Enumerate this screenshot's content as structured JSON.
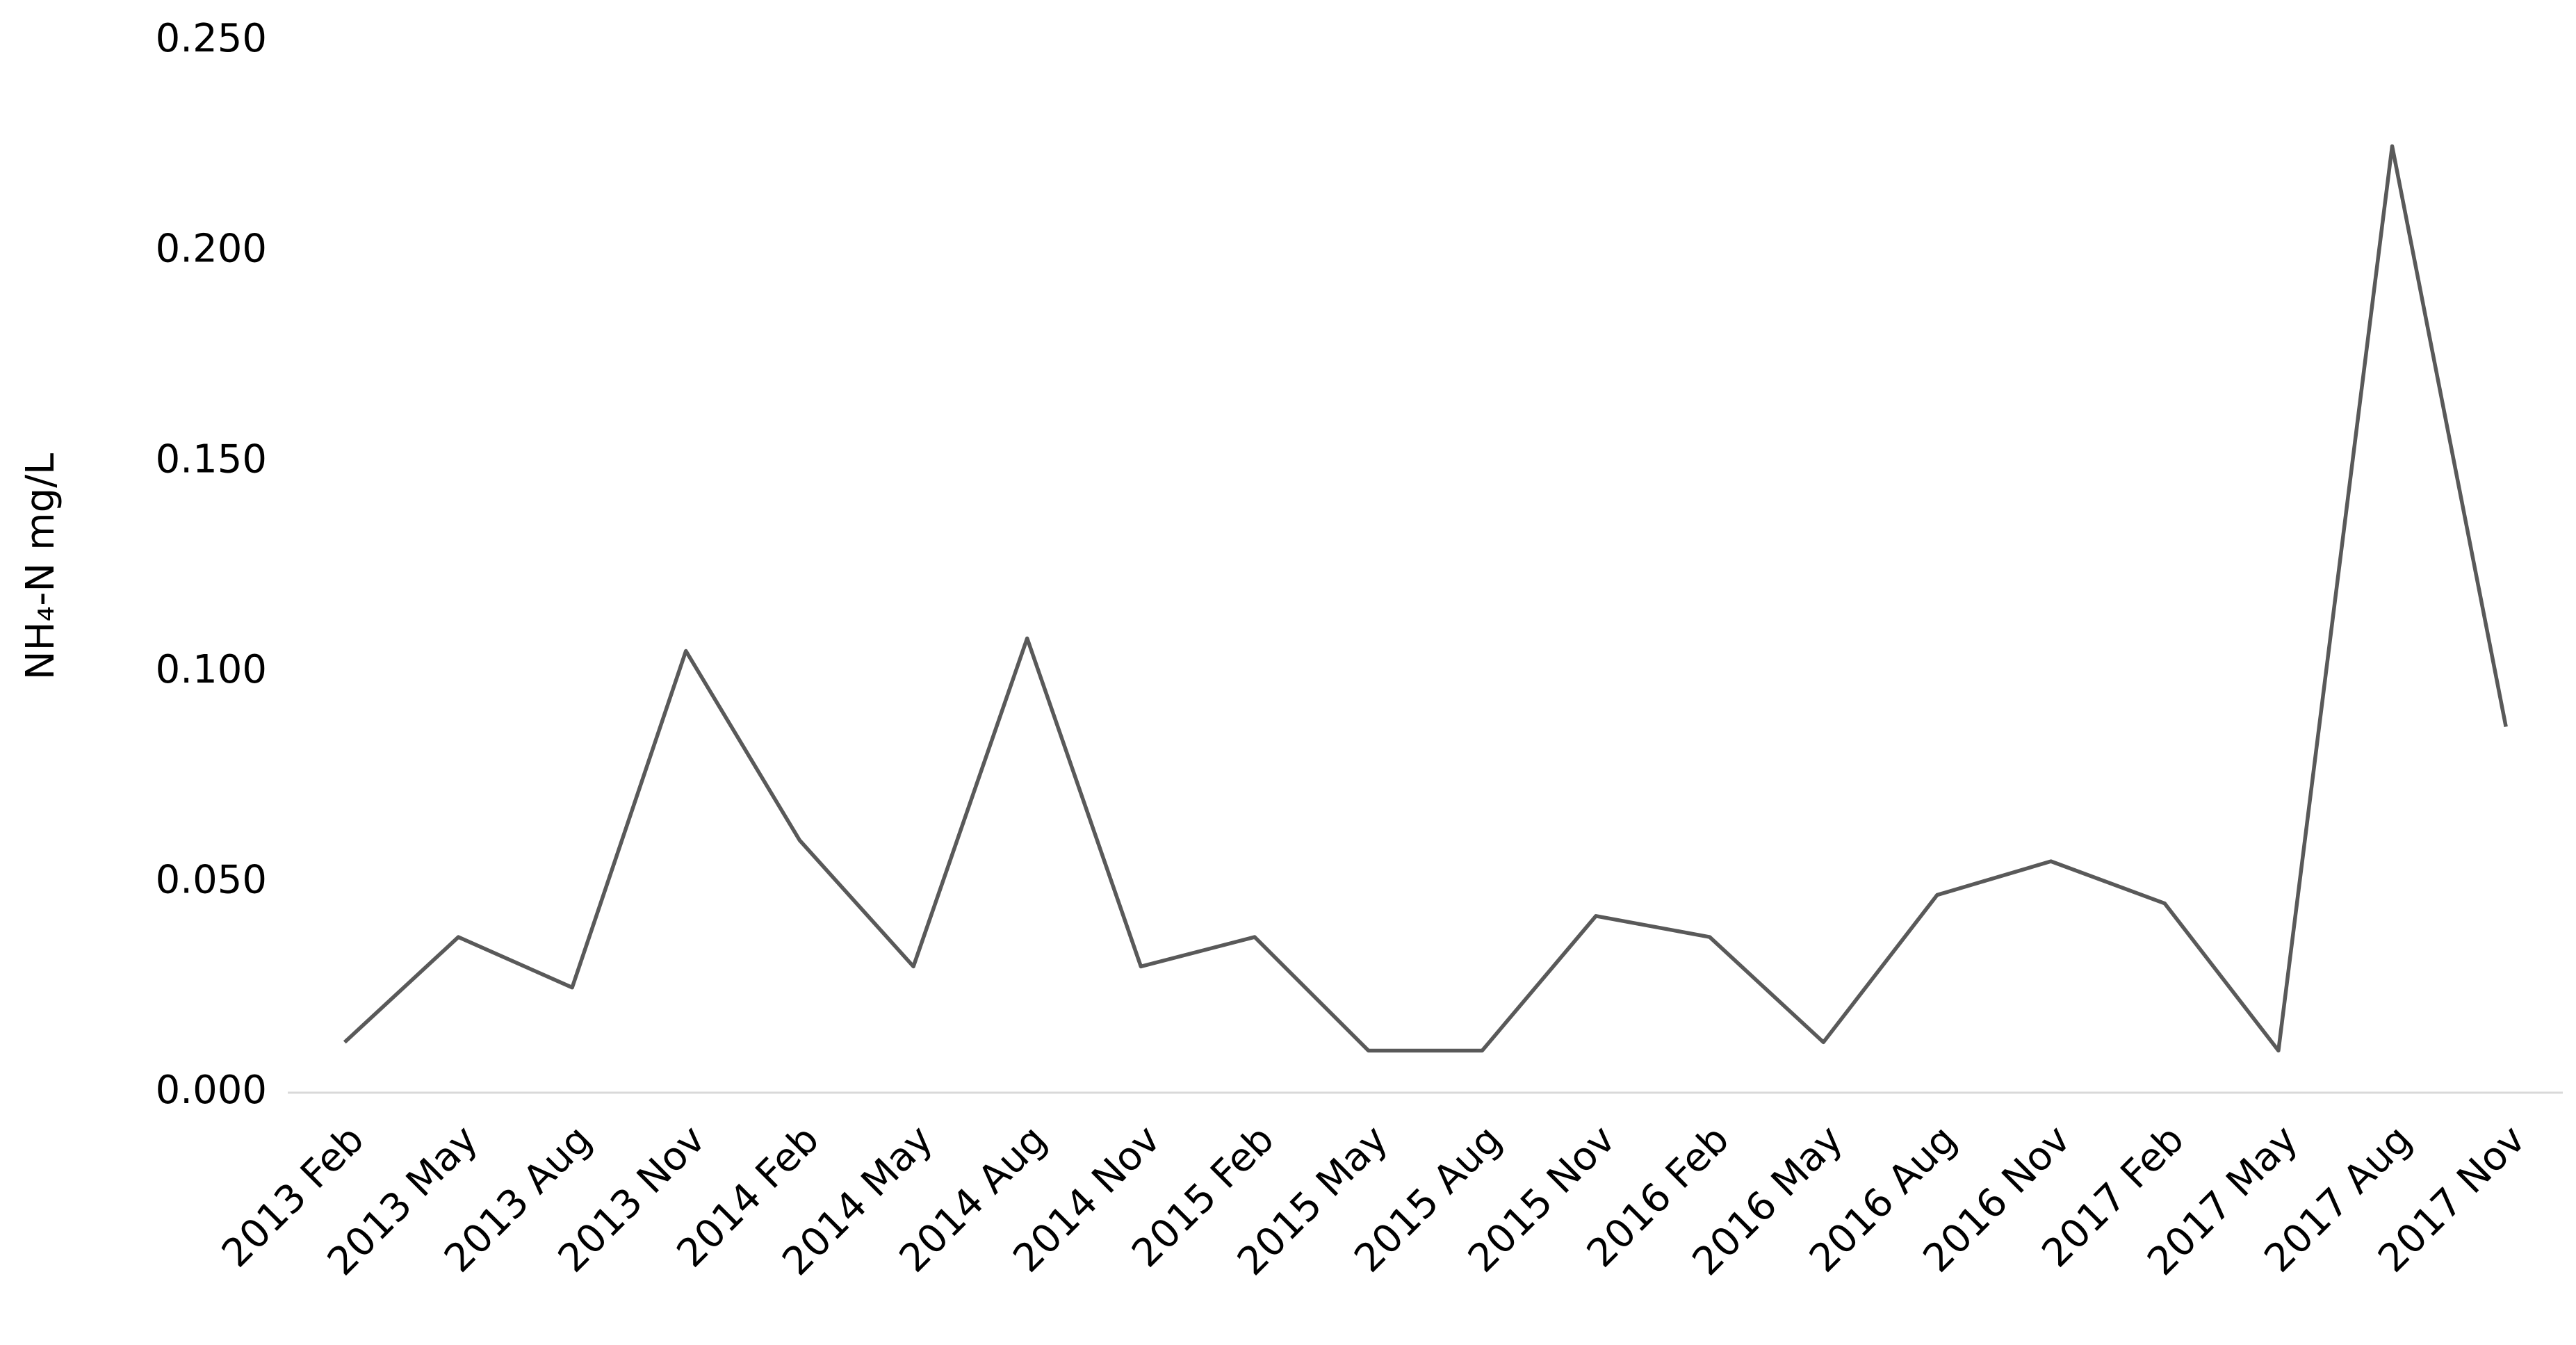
{
  "chart_data": {
    "type": "line",
    "ylabel": "NH₄-N mg/L",
    "categories": [
      "2013 Feb",
      "2013 May",
      "2013 Aug",
      "2013 Nov",
      "2014 Feb",
      "2014 May",
      "2014 Aug",
      "2014 Nov",
      "2015 Feb",
      "2015 May",
      "2015 Aug",
      "2015 Nov",
      "2016 Feb",
      "2016 May",
      "2016 Aug",
      "2016 Nov",
      "2017 Feb",
      "2017 May",
      "2017 Aug",
      "2017 Nov"
    ],
    "values": [
      0.012,
      0.037,
      0.025,
      0.105,
      0.06,
      0.03,
      0.108,
      0.03,
      0.037,
      0.01,
      0.01,
      0.042,
      0.037,
      0.012,
      0.047,
      0.055,
      0.045,
      0.01,
      0.225,
      0.087
    ],
    "color": "#595959",
    "ylim": [
      0,
      0.25
    ],
    "yticks": [
      {
        "value": 0,
        "label": "0.000"
      },
      {
        "value": 0.05,
        "label": "0.050"
      },
      {
        "value": 0.1,
        "label": "0.100"
      },
      {
        "value": 0.15,
        "label": "0.150"
      },
      {
        "value": 0.2,
        "label": "0.200"
      },
      {
        "value": 0.25,
        "label": "0.250"
      }
    ],
    "grid": false
  }
}
